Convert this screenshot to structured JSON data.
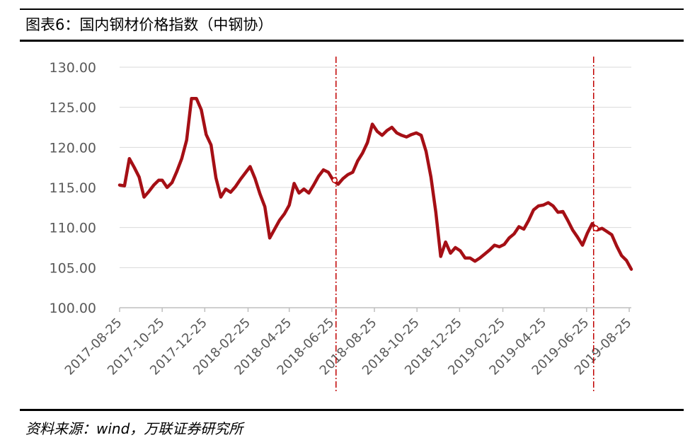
{
  "figure": {
    "title": "图表6：国内钢材价格指数（中钢协）",
    "source": "资料来源：wind，万联证券研究所"
  },
  "chart_data": {
    "type": "line",
    "title": "",
    "xlabel": "",
    "ylabel": "",
    "ylim": [
      100,
      130
    ],
    "yticks": [
      "100.00",
      "105.00",
      "110.00",
      "115.00",
      "120.00",
      "125.00",
      "130.00"
    ],
    "ytick_values": [
      100,
      105,
      110,
      115,
      120,
      125,
      130
    ],
    "xticks": [
      "2017-08-25",
      "2017-10-25",
      "2017-12-25",
      "2018-02-25",
      "2018-04-25",
      "2018-06-25",
      "2018-08-25",
      "2018-10-25",
      "2018-12-25",
      "2019-02-25",
      "2019-04-25",
      "2019-06-25",
      "2019-08-25"
    ],
    "grid": "horizontal",
    "legend": "none",
    "line_color": "#A50F15",
    "marker_color": "#C00000",
    "x": [
      "2017-08-25",
      "2017-09-01",
      "2017-09-08",
      "2017-09-15",
      "2017-09-22",
      "2017-09-29",
      "2017-10-06",
      "2017-10-13",
      "2017-10-20",
      "2017-10-25",
      "2017-11-01",
      "2017-11-08",
      "2017-11-15",
      "2017-11-22",
      "2017-11-29",
      "2017-12-06",
      "2017-12-13",
      "2017-12-20",
      "2017-12-27",
      "2018-01-03",
      "2018-01-10",
      "2018-01-17",
      "2018-01-24",
      "2018-01-31",
      "2018-02-07",
      "2018-02-14",
      "2018-02-21",
      "2018-02-28",
      "2018-03-07",
      "2018-03-14",
      "2018-03-21",
      "2018-03-28",
      "2018-04-04",
      "2018-04-11",
      "2018-04-18",
      "2018-04-25",
      "2018-05-02",
      "2018-05-09",
      "2018-05-16",
      "2018-05-23",
      "2018-05-30",
      "2018-06-06",
      "2018-06-13",
      "2018-06-20",
      "2018-06-27",
      "2018-07-04",
      "2018-07-11",
      "2018-07-18",
      "2018-07-25",
      "2018-08-01",
      "2018-08-08",
      "2018-08-15",
      "2018-08-22",
      "2018-08-29",
      "2018-09-05",
      "2018-09-12",
      "2018-09-19",
      "2018-09-26",
      "2018-10-03",
      "2018-10-10",
      "2018-10-17",
      "2018-10-24",
      "2018-10-31",
      "2018-11-07",
      "2018-11-14",
      "2018-11-21",
      "2018-11-28",
      "2018-12-05",
      "2018-12-12",
      "2018-12-19",
      "2018-12-26",
      "2019-01-02",
      "2019-01-09",
      "2019-01-16",
      "2019-01-23",
      "2019-01-30",
      "2019-02-06",
      "2019-02-13",
      "2019-02-20",
      "2019-02-27",
      "2019-03-06",
      "2019-03-13",
      "2019-03-20",
      "2019-03-27",
      "2019-04-03",
      "2019-04-10",
      "2019-04-17",
      "2019-04-24",
      "2019-05-01",
      "2019-05-08",
      "2019-05-15",
      "2019-05-22",
      "2019-05-29",
      "2019-06-05",
      "2019-06-12",
      "2019-06-19",
      "2019-06-26",
      "2019-07-03",
      "2019-07-10",
      "2019-07-17",
      "2019-07-24",
      "2019-07-31",
      "2019-08-07",
      "2019-08-14",
      "2019-08-21",
      "2019-08-28"
    ],
    "values": [
      115.3,
      115.2,
      118.6,
      117.5,
      116.3,
      113.8,
      114.5,
      115.3,
      115.9,
      115.9,
      115.0,
      115.6,
      117.0,
      118.6,
      120.9,
      126.1,
      126.1,
      124.7,
      121.6,
      120.3,
      116.2,
      113.8,
      114.8,
      114.4,
      115.1,
      116.0,
      116.8,
      117.6,
      116.1,
      114.2,
      112.6,
      108.7,
      109.8,
      110.9,
      111.7,
      112.8,
      115.5,
      114.3,
      114.8,
      114.3,
      115.3,
      116.4,
      117.2,
      116.9,
      115.9,
      115.4,
      116.1,
      116.6,
      116.9,
      118.3,
      119.3,
      120.6,
      122.9,
      122.0,
      121.5,
      122.1,
      122.5,
      121.8,
      121.5,
      121.3,
      121.6,
      121.8,
      121.5,
      119.5,
      116.3,
      111.9,
      106.4,
      108.2,
      106.8,
      107.5,
      107.1,
      106.2,
      106.2,
      105.8,
      106.2,
      106.7,
      107.2,
      107.8,
      107.6,
      107.9,
      108.7,
      109.2,
      110.1,
      109.8,
      110.9,
      112.2,
      112.7,
      112.8,
      113.1,
      112.7,
      111.9,
      112.0,
      110.9,
      109.7,
      108.8,
      107.8,
      109.3,
      110.5,
      109.7,
      109.9,
      109.5,
      109.1,
      107.7,
      106.5,
      105.9,
      104.8
    ],
    "reference_lines": [
      "2018-07-01",
      "2019-07-05"
    ],
    "markers": [
      {
        "x": "2018-06-29",
        "y": 115.9
      },
      {
        "x": "2019-07-08",
        "y": 109.9
      }
    ]
  }
}
